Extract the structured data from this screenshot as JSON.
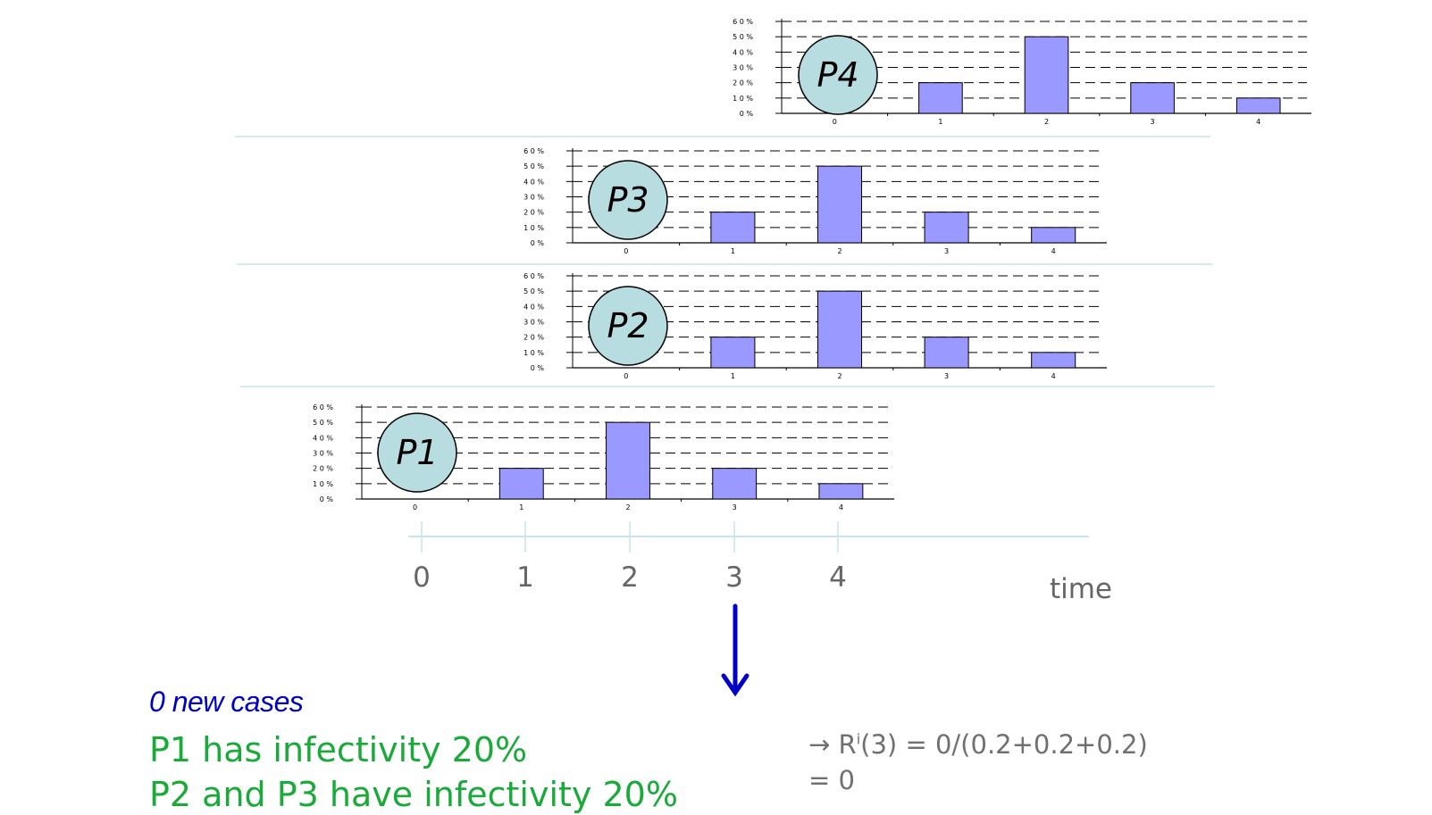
{
  "chart_data": [
    {
      "type": "bar",
      "label": "P4",
      "categories": [
        "0",
        "1",
        "2",
        "3",
        "4"
      ],
      "values": [
        0,
        20,
        50,
        20,
        10
      ],
      "ylim": [
        0,
        60
      ],
      "yticks": [
        "0 %",
        "1 0 %",
        "2 0 %",
        "3 0 %",
        "4 0 %",
        "5 0 %",
        "6 0 %"
      ],
      "grid": true,
      "bar_color": "#9999ff"
    },
    {
      "type": "bar",
      "label": "P3",
      "categories": [
        "0",
        "1",
        "2",
        "3",
        "4"
      ],
      "values": [
        0,
        20,
        50,
        20,
        10
      ],
      "ylim": [
        0,
        60
      ],
      "yticks": [
        "0 %",
        "1 0 %",
        "2 0 %",
        "3 0 %",
        "4 0 %",
        "5 0 %",
        "6 0 %"
      ],
      "grid": true,
      "bar_color": "#9999ff"
    },
    {
      "type": "bar",
      "label": "P2",
      "categories": [
        "0",
        "1",
        "2",
        "3",
        "4"
      ],
      "values": [
        0,
        20,
        50,
        20,
        10
      ],
      "ylim": [
        0,
        60
      ],
      "yticks": [
        "0 %",
        "1 0 %",
        "2 0 %",
        "3 0 %",
        "4 0 %",
        "5 0 %",
        "6 0 %"
      ],
      "grid": true,
      "bar_color": "#9999ff"
    },
    {
      "type": "bar",
      "label": "P1",
      "categories": [
        "0",
        "1",
        "2",
        "3",
        "4"
      ],
      "values": [
        0,
        20,
        50,
        20,
        10
      ],
      "ylim": [
        0,
        60
      ],
      "yticks": [
        "0 %",
        "1 0 %",
        "2 0 %",
        "3 0 %",
        "4 0 %",
        "5 0 %",
        "6 0 %"
      ],
      "grid": true,
      "bar_color": "#9999ff"
    }
  ],
  "timeline": {
    "ticks": [
      "0",
      "1",
      "2",
      "3",
      "4"
    ],
    "label": "time",
    "highlight_tick": "3",
    "arrow_color": "#0000c8"
  },
  "text": {
    "new_cases": "0 new cases",
    "p1_infectivity": "P1 has infectivity 20%",
    "p2_p3_infectivity": "P2 and P3 have infectivity 20%",
    "formula_arrow": "→",
    "formula_r": "R",
    "formula_sup": "i",
    "formula_rest": "(3) = 0/(0.2+0.2+0.2)",
    "formula_line2": "= 0"
  },
  "colors": {
    "bubble_fill": "#b7dde0",
    "separator": "#c9e4e6",
    "green_text": "#1aaa3a",
    "blue_text": "#0000c0",
    "gray_text": "#707070"
  }
}
